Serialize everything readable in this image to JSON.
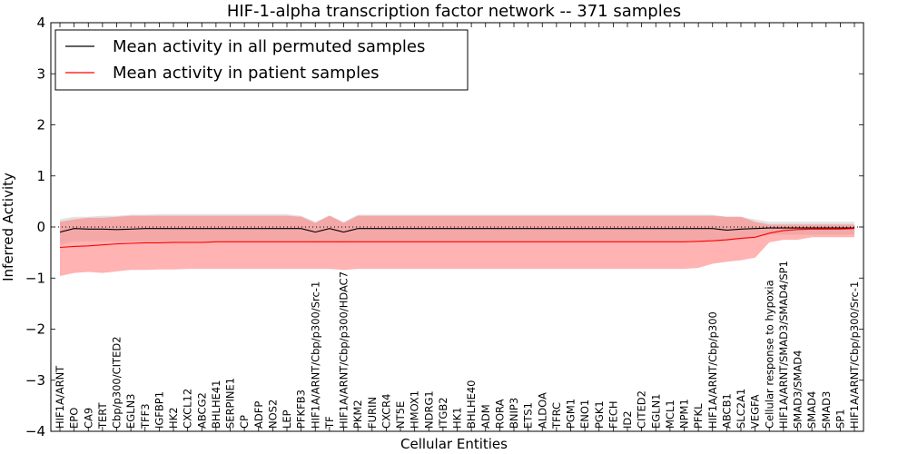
{
  "chart_data": {
    "type": "line",
    "title": "HIF-1-alpha transcription factor network -- 371 samples",
    "xlabel": "Cellular Entities",
    "ylabel": "Inferred Activity",
    "ylim": [
      -4,
      4
    ],
    "yticks": [
      "4",
      "3",
      "2",
      "1",
      "0",
      "−1",
      "−2",
      "−3",
      "−4"
    ],
    "ytick_values": [
      4,
      3,
      2,
      1,
      0,
      -1,
      -2,
      -3,
      -4
    ],
    "grid": false,
    "legend_position": "top-left",
    "categories": [
      "HIF1A/ARNT",
      "EPO",
      "CA9",
      "TERT",
      "Cbp/p300/CITED2",
      "EGLN3",
      "TFF3",
      "IGFBP1",
      "HK2",
      "CXCL12",
      "ABCG2",
      "BHLHE41",
      "SERPINE1",
      "CP",
      "ADFP",
      "NOS2",
      "LEP",
      "PFKFB3",
      "HIF1A/ARNT/Cbp/p300/Src-1",
      "TF",
      "HIF1A/ARNT/Cbp/p300/HDAC7",
      "PKM2",
      "FURIN",
      "CXCR4",
      "NT5E",
      "HMOX1",
      "NDRG1",
      "ITGB2",
      "HK1",
      "BHLHE40",
      "ADM",
      "RORA",
      "BNIP3",
      "ETS1",
      "ALDOA",
      "TFRC",
      "PGM1",
      "ENO1",
      "PGK1",
      "FECH",
      "ID2",
      "CITED2",
      "EGLN1",
      "MCL1",
      "NPM1",
      "PFKL",
      "HIF1A/ARNT/Cbp/p300",
      "ABCB1",
      "SLC2A1",
      "VEGFA",
      "Cellular response to hypoxia",
      "HIF1A/ARNT/SMAD3/SMAD4/SP1",
      "SMAD3/SMAD4",
      "SMAD4",
      "SMAD3",
      "SP1",
      "HIF1A/ARNT/Cbp/p300/Src-1"
    ],
    "series": [
      {
        "name": "Mean activity in all permuted samples",
        "color": "#000000",
        "band_color": "#c8c8c8",
        "values": [
          -0.1,
          -0.03,
          -0.04,
          -0.04,
          -0.05,
          -0.04,
          -0.03,
          -0.03,
          -0.03,
          -0.03,
          -0.03,
          -0.03,
          -0.03,
          -0.03,
          -0.03,
          -0.03,
          -0.03,
          -0.03,
          -0.1,
          -0.03,
          -0.1,
          -0.03,
          -0.03,
          -0.03,
          -0.03,
          -0.03,
          -0.03,
          -0.03,
          -0.03,
          -0.03,
          -0.03,
          -0.03,
          -0.03,
          -0.03,
          -0.03,
          -0.03,
          -0.03,
          -0.03,
          -0.03,
          -0.03,
          -0.03,
          -0.03,
          -0.03,
          -0.03,
          -0.03,
          -0.03,
          -0.03,
          -0.06,
          -0.04,
          -0.03,
          -0.02,
          -0.02,
          -0.02,
          -0.02,
          -0.02,
          -0.02,
          -0.02
        ],
        "upper": [
          0.15,
          0.2,
          0.2,
          0.22,
          0.22,
          0.24,
          0.24,
          0.25,
          0.25,
          0.25,
          0.25,
          0.25,
          0.25,
          0.25,
          0.25,
          0.25,
          0.25,
          0.22,
          0.1,
          0.23,
          0.1,
          0.24,
          0.24,
          0.24,
          0.24,
          0.24,
          0.24,
          0.24,
          0.24,
          0.24,
          0.24,
          0.24,
          0.24,
          0.24,
          0.24,
          0.24,
          0.24,
          0.24,
          0.24,
          0.24,
          0.24,
          0.24,
          0.24,
          0.24,
          0.24,
          0.24,
          0.24,
          0.2,
          0.2,
          0.15,
          0.1,
          0.1,
          0.1,
          0.1,
          0.1,
          0.1,
          0.1
        ],
        "lower": [
          -0.35,
          -0.28,
          -0.28,
          -0.28,
          -0.28,
          -0.28,
          -0.28,
          -0.28,
          -0.28,
          -0.28,
          -0.28,
          -0.28,
          -0.28,
          -0.28,
          -0.28,
          -0.28,
          -0.28,
          -0.28,
          -0.3,
          -0.28,
          -0.3,
          -0.28,
          -0.28,
          -0.28,
          -0.28,
          -0.28,
          -0.28,
          -0.28,
          -0.28,
          -0.28,
          -0.28,
          -0.28,
          -0.28,
          -0.28,
          -0.28,
          -0.28,
          -0.28,
          -0.28,
          -0.28,
          -0.28,
          -0.28,
          -0.28,
          -0.28,
          -0.28,
          -0.28,
          -0.28,
          -0.28,
          -0.28,
          -0.25,
          -0.2,
          -0.15,
          -0.15,
          -0.15,
          -0.15,
          -0.15,
          -0.15,
          -0.15
        ]
      },
      {
        "name": "Mean activity in patient samples",
        "color": "#ff0000",
        "band_color": "#ff8080",
        "values": [
          -0.4,
          -0.38,
          -0.37,
          -0.35,
          -0.33,
          -0.32,
          -0.31,
          -0.31,
          -0.3,
          -0.3,
          -0.3,
          -0.29,
          -0.29,
          -0.29,
          -0.29,
          -0.29,
          -0.29,
          -0.29,
          -0.29,
          -0.29,
          -0.29,
          -0.29,
          -0.29,
          -0.29,
          -0.29,
          -0.29,
          -0.29,
          -0.29,
          -0.29,
          -0.29,
          -0.29,
          -0.29,
          -0.29,
          -0.29,
          -0.29,
          -0.29,
          -0.29,
          -0.29,
          -0.29,
          -0.29,
          -0.29,
          -0.29,
          -0.29,
          -0.29,
          -0.29,
          -0.28,
          -0.27,
          -0.25,
          -0.22,
          -0.2,
          -0.12,
          -0.07,
          -0.05,
          -0.04,
          -0.04,
          -0.04,
          -0.03
        ],
        "upper": [
          0.1,
          0.15,
          0.18,
          0.18,
          0.2,
          0.22,
          0.22,
          0.22,
          0.22,
          0.22,
          0.22,
          0.22,
          0.22,
          0.22,
          0.22,
          0.22,
          0.22,
          0.2,
          0.08,
          0.22,
          0.08,
          0.22,
          0.22,
          0.22,
          0.22,
          0.22,
          0.22,
          0.22,
          0.22,
          0.22,
          0.22,
          0.22,
          0.22,
          0.22,
          0.22,
          0.22,
          0.22,
          0.22,
          0.22,
          0.22,
          0.22,
          0.22,
          0.22,
          0.22,
          0.22,
          0.22,
          0.22,
          0.2,
          0.2,
          0.1,
          0.05,
          0.05,
          0.05,
          0.05,
          0.05,
          0.05,
          0.05
        ],
        "lower": [
          -0.96,
          -0.9,
          -0.88,
          -0.9,
          -0.87,
          -0.84,
          -0.84,
          -0.83,
          -0.83,
          -0.82,
          -0.82,
          -0.82,
          -0.82,
          -0.82,
          -0.82,
          -0.82,
          -0.82,
          -0.82,
          -0.82,
          -0.82,
          -0.84,
          -0.82,
          -0.82,
          -0.82,
          -0.82,
          -0.82,
          -0.82,
          -0.82,
          -0.82,
          -0.82,
          -0.82,
          -0.82,
          -0.82,
          -0.82,
          -0.82,
          -0.82,
          -0.82,
          -0.82,
          -0.82,
          -0.82,
          -0.82,
          -0.82,
          -0.82,
          -0.82,
          -0.82,
          -0.8,
          -0.72,
          -0.68,
          -0.65,
          -0.6,
          -0.3,
          -0.25,
          -0.25,
          -0.2,
          -0.2,
          -0.2,
          -0.2
        ]
      }
    ]
  }
}
